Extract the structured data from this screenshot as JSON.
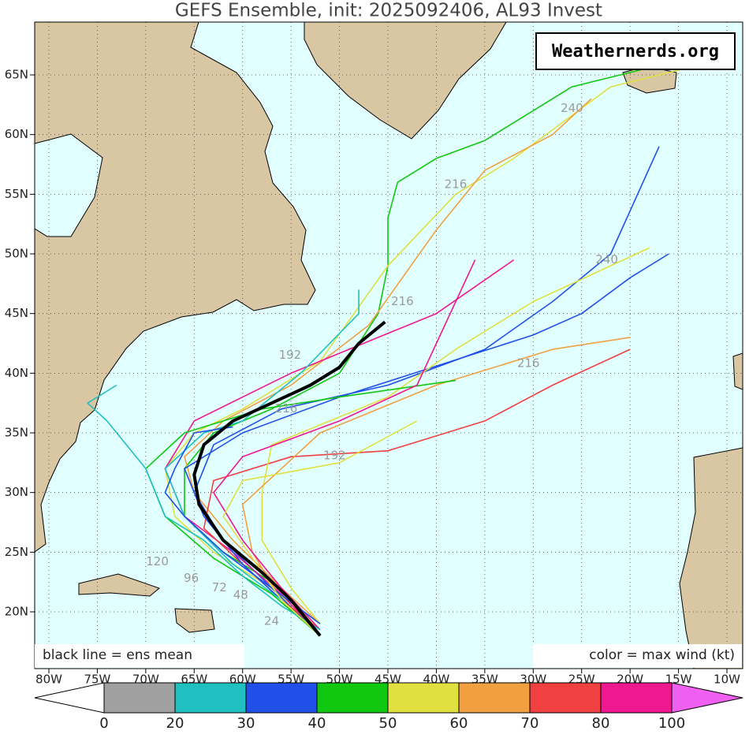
{
  "title": "GEFS Ensemble, init: 2025092406, AL93 Invest",
  "watermark": "Weathernerds.org",
  "note_left": "black line = ens mean",
  "note_right": "color = max wind (kt)",
  "lon_ticks": [
    {
      "value": -80,
      "label": "80W"
    },
    {
      "value": -75,
      "label": "75W"
    },
    {
      "value": -70,
      "label": "70W"
    },
    {
      "value": -65,
      "label": "65W"
    },
    {
      "value": -60,
      "label": "60W"
    },
    {
      "value": -55,
      "label": "55W"
    },
    {
      "value": -50,
      "label": "50W"
    },
    {
      "value": -45,
      "label": "45W"
    },
    {
      "value": -40,
      "label": "40W"
    },
    {
      "value": -35,
      "label": "35W"
    },
    {
      "value": -30,
      "label": "30W"
    },
    {
      "value": -25,
      "label": "25W"
    },
    {
      "value": -20,
      "label": "20W"
    },
    {
      "value": -15,
      "label": "15W"
    },
    {
      "value": -10,
      "label": "10W"
    }
  ],
  "lat_ticks": [
    {
      "value": 20,
      "label": "20N"
    },
    {
      "value": 25,
      "label": "25N"
    },
    {
      "value": 30,
      "label": "30N"
    },
    {
      "value": 35,
      "label": "35N"
    },
    {
      "value": 40,
      "label": "40N"
    },
    {
      "value": 45,
      "label": "45N"
    },
    {
      "value": 50,
      "label": "50N"
    },
    {
      "value": 55,
      "label": "55N"
    },
    {
      "value": 60,
      "label": "60N"
    },
    {
      "value": 65,
      "label": "65N"
    }
  ],
  "colorbar": {
    "colors": [
      "#ffffff",
      "#a0a0a0",
      "#20c0c0",
      "#2050e8",
      "#10c810",
      "#e0e040",
      "#f0a040",
      "#f04040",
      "#f01890",
      "#f060f0"
    ],
    "ticks": [
      0,
      20,
      30,
      40,
      50,
      60,
      70,
      80,
      100
    ]
  },
  "mean_track": {
    "lon": [
      -52,
      -55,
      -58,
      -62,
      -64.5,
      -65,
      -64,
      -61,
      -57,
      -53,
      -50,
      -48,
      -45.3
    ],
    "lat": [
      18,
      21,
      23.3,
      26,
      29,
      31.5,
      34,
      36,
      37.5,
      39,
      40.5,
      42.5,
      44.3
    ]
  },
  "members": [
    {
      "color": "#10c810",
      "lon": [
        -52,
        -56,
        -62,
        -66,
        -66,
        -63,
        -57,
        -50,
        -46,
        -45,
        -45,
        -44,
        -40,
        -35,
        -26,
        -16
      ],
      "lat": [
        18,
        22,
        25,
        28,
        32,
        35,
        37,
        40,
        45,
        49,
        53,
        56,
        58,
        59.5,
        64,
        66
      ]
    },
    {
      "color": "#e0e040",
      "lon": [
        -52,
        -57,
        -63,
        -67,
        -68,
        -65,
        -60,
        -52,
        -45,
        -38,
        -32,
        -22,
        -13
      ],
      "lat": [
        18.5,
        22,
        25,
        28,
        32,
        35,
        37,
        41,
        49,
        55,
        58,
        64,
        65.8
      ]
    },
    {
      "color": "#2050e8",
      "lon": [
        -52,
        -57,
        -62,
        -65,
        -63,
        -56,
        -45,
        -35,
        -28,
        -22,
        -17
      ],
      "lat": [
        18,
        22,
        26,
        30,
        34,
        37,
        39,
        42,
        46,
        50,
        59
      ]
    },
    {
      "color": "#f0a040",
      "lon": [
        -52,
        -56,
        -61,
        -65,
        -66,
        -62,
        -55,
        -47,
        -40,
        -35,
        -28,
        -24
      ],
      "lat": [
        19,
        22,
        26,
        30,
        33,
        36,
        39,
        44,
        52,
        57,
        60,
        63
      ]
    },
    {
      "color": "#f01890",
      "lon": [
        -52,
        -56,
        -61,
        -66,
        -68,
        -65,
        -55,
        -40,
        -32
      ],
      "lat": [
        18,
        21.5,
        25,
        28,
        32,
        36,
        40,
        45,
        49.5
      ]
    },
    {
      "color": "#f04040",
      "lon": [
        -52,
        -56,
        -60,
        -64,
        -63,
        -55,
        -45,
        -35,
        -28,
        -20
      ],
      "lat": [
        18.5,
        21,
        24,
        27,
        31,
        33,
        33.5,
        36,
        39,
        42
      ]
    },
    {
      "color": "#2050e8",
      "lon": [
        -52,
        -56,
        -60,
        -64,
        -66,
        -60,
        -50,
        -30,
        -25,
        -20,
        -16
      ],
      "lat": [
        18,
        21,
        24,
        28,
        32,
        35,
        38,
        43.2,
        45,
        48,
        50
      ]
    },
    {
      "color": "#20c0c0",
      "lon": [
        -52,
        -56,
        -61,
        -66,
        -68,
        -64,
        -60,
        -54,
        -48,
        -48
      ],
      "lat": [
        18,
        21,
        24,
        28,
        32,
        35,
        36,
        40,
        45,
        47
      ]
    },
    {
      "color": "#e0e040",
      "lon": [
        -52,
        -55,
        -58,
        -58,
        -57,
        -45,
        -38,
        -30,
        -18
      ],
      "lat": [
        19,
        22,
        26,
        30,
        34,
        38,
        42,
        46,
        50.5
      ]
    },
    {
      "color": "#f0a040",
      "lon": [
        -52,
        -56,
        -59,
        -60,
        -52,
        -40,
        -28,
        -20
      ],
      "lat": [
        18,
        21,
        25,
        29,
        35,
        39,
        42,
        43
      ]
    },
    {
      "color": "#10c810",
      "lon": [
        -52,
        -57,
        -63,
        -68,
        -70,
        -66,
        -58,
        -50,
        -38
      ],
      "lat": [
        18,
        21.5,
        24.5,
        28,
        32,
        35,
        37,
        38,
        39.4
      ]
    },
    {
      "color": "#f01890",
      "lon": [
        -52,
        -56,
        -60,
        -63,
        -60,
        -50,
        -42,
        -36
      ],
      "lat": [
        18.5,
        22,
        26,
        30,
        33,
        36,
        39,
        49.5
      ]
    },
    {
      "color": "#20c0c0",
      "lon": [
        -52,
        -56,
        -60,
        -64,
        -68,
        -70,
        -74,
        -76,
        -73
      ],
      "lat": [
        18.5,
        20.5,
        23,
        26,
        28,
        32,
        36,
        37.5,
        39
      ]
    },
    {
      "color": "#2050e8",
      "lon": [
        -52,
        -57,
        -62,
        -66,
        -68,
        -67,
        -65,
        -61
      ],
      "lat": [
        19,
        22,
        25,
        28,
        30,
        32,
        35,
        35.5
      ]
    },
    {
      "color": "#e0e040",
      "lon": [
        -52,
        -56,
        -59,
        -62,
        -60,
        -50,
        -42
      ],
      "lat": [
        18,
        21,
        24.5,
        28,
        31,
        32.5,
        36
      ]
    }
  ],
  "hour_labels": [
    {
      "text": "240",
      "lon": -26,
      "lat": 62.2
    },
    {
      "text": "216",
      "lon": -38,
      "lat": 55.8
    },
    {
      "text": "240",
      "lon": -22.4,
      "lat": 49.5
    },
    {
      "text": "216",
      "lon": -43.5,
      "lat": 46
    },
    {
      "text": "216",
      "lon": -30.5,
      "lat": 40.8
    },
    {
      "text": "192",
      "lon": -55.1,
      "lat": 41.5
    },
    {
      "text": "192",
      "lon": -50.5,
      "lat": 33.1
    },
    {
      "text": "216",
      "lon": -55.5,
      "lat": 37
    },
    {
      "text": "120",
      "lon": -68.8,
      "lat": 24.2
    },
    {
      "text": "96",
      "lon": -65.3,
      "lat": 22.8
    },
    {
      "text": "72",
      "lon": -62.4,
      "lat": 22
    },
    {
      "text": "48",
      "lon": -60.2,
      "lat": 21.4
    },
    {
      "text": "24",
      "lon": -57,
      "lat": 19.2
    }
  ]
}
